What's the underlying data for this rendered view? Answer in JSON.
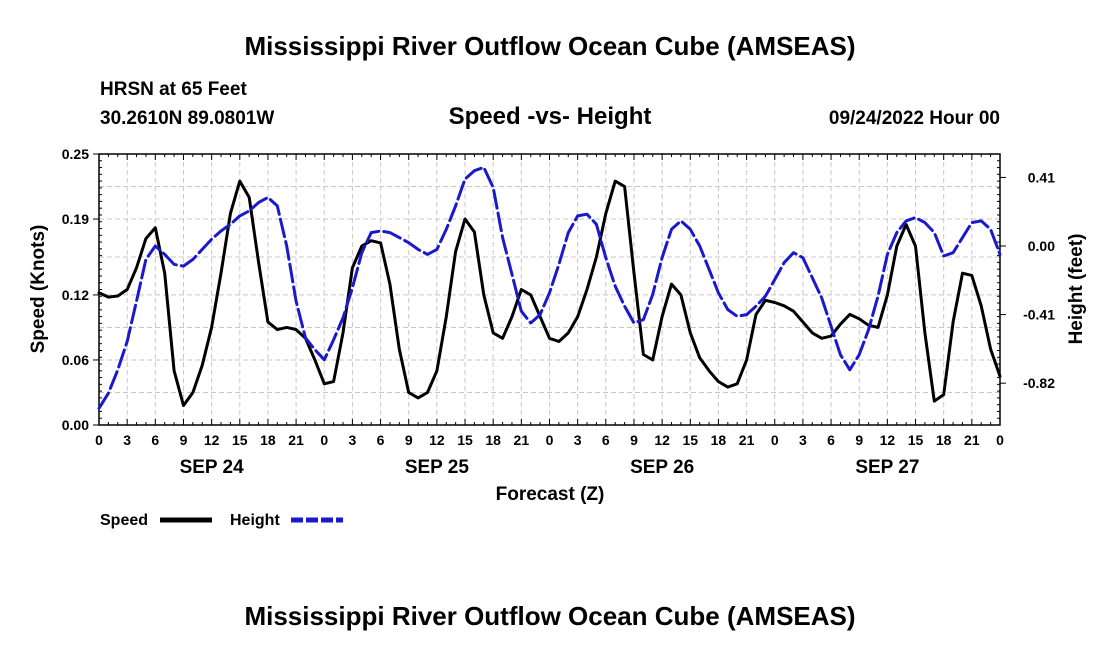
{
  "page": {
    "title_top": "Mississippi River Outflow Ocean Cube (AMSEAS)",
    "title_bottom": "Mississippi River Outflow Ocean Cube (AMSEAS)"
  },
  "chart_data": {
    "type": "line",
    "station": "HRSN at 65 Feet",
    "location": "30.2610N  89.0801W",
    "title": "Speed -vs- Height",
    "datetime": "09/24/2022 Hour 00",
    "xlabel": "Forecast (Z)",
    "ylabel": "Speed (Knots)",
    "y2label": "Height (feet)",
    "x_range": [
      0,
      96
    ],
    "ylim": [
      0,
      0.25
    ],
    "y2lim": [
      -1.07,
      0.55
    ],
    "yticks": [
      "0.00",
      "0.06",
      "0.12",
      "0.19",
      "0.25"
    ],
    "y2ticks": [
      "-0.82",
      "-0.41",
      "0.00",
      "0.41"
    ],
    "xtick_labels": [
      "0",
      "3",
      "6",
      "9",
      "12",
      "15",
      "18",
      "21",
      "0",
      "3",
      "6",
      "9",
      "12",
      "15",
      "18",
      "21",
      "0",
      "3",
      "6",
      "9",
      "12",
      "15",
      "18",
      "21",
      "0",
      "3",
      "6",
      "9",
      "12",
      "15",
      "18",
      "21",
      "0"
    ],
    "day_labels": [
      "SEP 24",
      "SEP 25",
      "SEP 26",
      "SEP 27"
    ],
    "grid": true,
    "legend": {
      "speed_label": "Speed",
      "height_label": "Height",
      "placement": "bottom-left"
    },
    "colors": {
      "speed": "#000000",
      "height": "#1a1acc",
      "grid": "#c8c8c8"
    },
    "series": [
      {
        "name": "Speed",
        "axis": "left",
        "x": [
          0,
          1,
          2,
          3,
          4,
          5,
          6,
          7,
          8,
          9,
          10,
          11,
          12,
          13,
          14,
          15,
          16,
          17,
          18,
          19,
          20,
          21,
          22,
          23,
          24,
          25,
          26,
          27,
          28,
          29,
          30,
          31,
          32,
          33,
          34,
          35,
          36,
          37,
          38,
          39,
          40,
          41,
          42,
          43,
          44,
          45,
          46,
          47,
          48,
          49,
          50,
          51,
          52,
          53,
          54,
          55,
          56,
          57,
          58,
          59,
          60,
          61,
          62,
          63,
          64,
          65,
          66,
          67,
          68,
          69,
          70,
          71,
          72,
          73,
          74,
          75,
          76,
          77,
          78,
          79,
          80,
          81,
          82,
          83,
          84,
          85,
          86,
          87,
          88,
          89,
          90,
          91,
          92,
          93,
          94,
          95,
          96
        ],
        "values": [
          0.122,
          0.118,
          0.119,
          0.125,
          0.145,
          0.172,
          0.182,
          0.14,
          0.05,
          0.018,
          0.03,
          0.055,
          0.09,
          0.14,
          0.195,
          0.225,
          0.21,
          0.15,
          0.095,
          0.088,
          0.09,
          0.088,
          0.08,
          0.06,
          0.038,
          0.04,
          0.085,
          0.145,
          0.165,
          0.17,
          0.168,
          0.13,
          0.07,
          0.03,
          0.025,
          0.03,
          0.05,
          0.1,
          0.16,
          0.19,
          0.178,
          0.12,
          0.085,
          0.08,
          0.1,
          0.125,
          0.12,
          0.1,
          0.08,
          0.077,
          0.085,
          0.1,
          0.125,
          0.155,
          0.195,
          0.225,
          0.22,
          0.14,
          0.065,
          0.06,
          0.1,
          0.13,
          0.12,
          0.085,
          0.062,
          0.05,
          0.04,
          0.035,
          0.038,
          0.06,
          0.102,
          0.115,
          0.113,
          0.11,
          0.105,
          0.095,
          0.085,
          0.08,
          0.082,
          0.093,
          0.102,
          0.098,
          0.092,
          0.09,
          0.12,
          0.165,
          0.185,
          0.165,
          0.085,
          0.022,
          0.028,
          0.095,
          0.14,
          0.138,
          0.11,
          0.07,
          0.045
        ]
      },
      {
        "name": "Height",
        "axis": "right",
        "x": [
          0,
          1,
          2,
          3,
          4,
          5,
          6,
          7,
          8,
          9,
          10,
          11,
          12,
          13,
          14,
          15,
          16,
          17,
          18,
          19,
          20,
          21,
          22,
          23,
          24,
          25,
          26,
          27,
          28,
          29,
          30,
          31,
          32,
          33,
          34,
          35,
          36,
          37,
          38,
          39,
          40,
          41,
          42,
          43,
          44,
          45,
          46,
          47,
          48,
          49,
          50,
          51,
          52,
          53,
          54,
          55,
          56,
          57,
          58,
          59,
          60,
          61,
          62,
          63,
          64,
          65,
          66,
          67,
          68,
          69,
          70,
          71,
          72,
          73,
          74,
          75,
          76,
          77,
          78,
          79,
          80,
          81,
          82,
          83,
          84,
          85,
          86,
          87,
          88,
          89,
          90,
          91,
          92,
          93,
          94,
          95,
          96
        ],
        "values": [
          -0.97,
          -0.88,
          -0.74,
          -0.57,
          -0.33,
          -0.08,
          0.0,
          -0.05,
          -0.11,
          -0.12,
          -0.08,
          -0.02,
          0.04,
          0.09,
          0.13,
          0.18,
          0.21,
          0.26,
          0.29,
          0.24,
          0.0,
          -0.33,
          -0.55,
          -0.62,
          -0.68,
          -0.56,
          -0.43,
          -0.25,
          -0.04,
          0.08,
          0.09,
          0.08,
          0.05,
          0.02,
          -0.02,
          -0.05,
          -0.02,
          0.1,
          0.24,
          0.4,
          0.45,
          0.47,
          0.35,
          0.05,
          -0.17,
          -0.39,
          -0.46,
          -0.41,
          -0.28,
          -0.11,
          0.08,
          0.18,
          0.19,
          0.13,
          -0.07,
          -0.24,
          -0.36,
          -0.46,
          -0.44,
          -0.29,
          -0.07,
          0.1,
          0.15,
          0.1,
          0.0,
          -0.14,
          -0.28,
          -0.38,
          -0.42,
          -0.41,
          -0.36,
          -0.3,
          -0.2,
          -0.1,
          -0.04,
          -0.07,
          -0.19,
          -0.31,
          -0.48,
          -0.65,
          -0.74,
          -0.65,
          -0.5,
          -0.3,
          -0.05,
          0.08,
          0.15,
          0.17,
          0.14,
          0.08,
          -0.06,
          -0.04,
          0.05,
          0.14,
          0.15,
          0.1,
          -0.05
        ]
      }
    ]
  }
}
